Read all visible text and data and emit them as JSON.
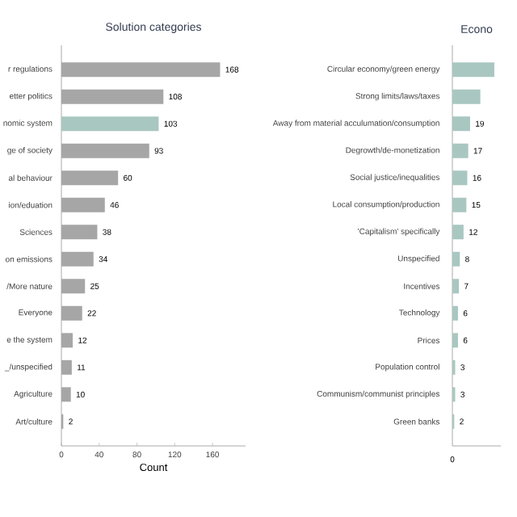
{
  "chart_data": [
    {
      "type": "bar",
      "orientation": "horizontal",
      "title": "Solution categories",
      "xlabel": "Count",
      "categories": [
        "r regulations",
        "etter politics",
        "nomic system",
        "ge of society",
        "al behaviour",
        "ion/eduation",
        "Sciences",
        "on emissions",
        "/More nature",
        "Everyone",
        "e the system",
        "_/unspecified",
        "Agriculture",
        "Art/culture"
      ],
      "values": [
        168,
        108,
        103,
        93,
        60,
        46,
        38,
        34,
        25,
        22,
        12,
        11,
        10,
        2
      ],
      "colors": [
        "#a6a6a6",
        "#a6a6a6",
        "#a9c7c1",
        "#a6a6a6",
        "#a6a6a6",
        "#a6a6a6",
        "#a6a6a6",
        "#a6a6a6",
        "#a6a6a6",
        "#a6a6a6",
        "#a6a6a6",
        "#a6a6a6",
        "#a6a6a6",
        "#a6a6a6"
      ],
      "xlim": [
        0,
        195
      ],
      "xticks": [
        0,
        40,
        80,
        120,
        160
      ],
      "data_labels": true
    },
    {
      "type": "bar",
      "orientation": "horizontal",
      "title": "Econo",
      "xlim": [
        0,
        52
      ],
      "annotations": [
        "0"
      ],
      "categories": [
        "Circular economy/green energy",
        "Strong limits/laws/taxes",
        "Away from material acculumation/consumption",
        "Degrowth/de-monetization",
        "Social justice/inequalities",
        "Local consumption/production",
        "'Capitalism' specifically",
        "Unspecified",
        "Incentives",
        "Technology",
        "Prices",
        "Population control",
        "Communism/communist principles",
        "Green banks"
      ],
      "values": [
        45,
        30,
        19,
        17,
        16,
        15,
        12,
        8,
        7,
        6,
        6,
        3,
        3,
        2
      ],
      "value_labels": [
        null,
        null,
        "19",
        "17",
        "16",
        "15",
        "12",
        "8",
        "7",
        "6",
        "6",
        "3",
        "3",
        "2"
      ],
      "color": "#a9c7c1"
    }
  ]
}
